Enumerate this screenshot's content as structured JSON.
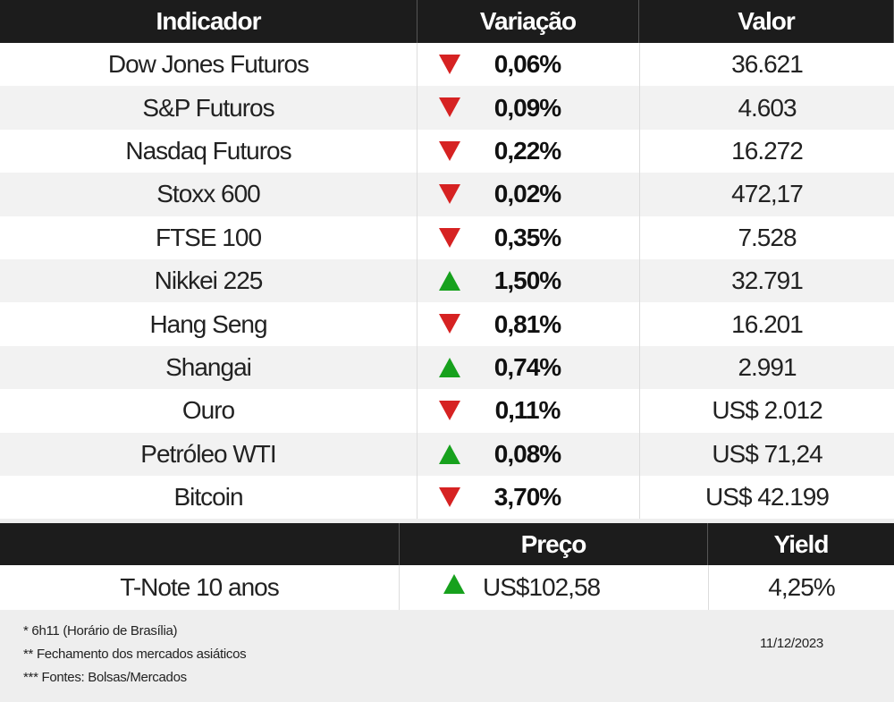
{
  "table": {
    "headers": [
      "Indicador",
      "Variação",
      "Valor"
    ],
    "rows": [
      {
        "name": "Dow Jones Futuros",
        "trend": "down",
        "change": "0,06%",
        "value": "36.621"
      },
      {
        "name": "S&P Futuros",
        "trend": "down",
        "change": "0,09%",
        "value": "4.603"
      },
      {
        "name": "Nasdaq Futuros",
        "trend": "down",
        "change": "0,22%",
        "value": "16.272"
      },
      {
        "name": "Stoxx 600",
        "trend": "down",
        "change": "0,02%",
        "value": "472,17"
      },
      {
        "name": "FTSE 100",
        "trend": "down",
        "change": "0,35%",
        "value": "7.528"
      },
      {
        "name": "Nikkei 225",
        "trend": "up",
        "change": "1,50%",
        "value": "32.791"
      },
      {
        "name": "Hang Seng",
        "trend": "down",
        "change": "0,81%",
        "value": "16.201"
      },
      {
        "name": "Shangai",
        "trend": "up",
        "change": "0,74%",
        "value": "2.991"
      },
      {
        "name": "Ouro",
        "trend": "down",
        "change": "0,11%",
        "value": "US$ 2.012"
      },
      {
        "name": "Petróleo WTI",
        "trend": "up",
        "change": "0,08%",
        "value": "US$ 71,24"
      },
      {
        "name": "Bitcoin",
        "trend": "down",
        "change": "3,70%",
        "value": "US$ 42.199"
      }
    ]
  },
  "bond_table": {
    "headers": [
      "Preço",
      "Yield"
    ],
    "row": {
      "name": "T-Note 10 anos",
      "trend": "up",
      "price": "US$102,58",
      "yield": "4,25%"
    }
  },
  "footer": {
    "notes": [
      "* 6h11 (Horário de Brasília)",
      "** Fechamento dos mercados asiáticos",
      "*** Fontes: Bolsas/Mercados"
    ],
    "date": "11/12/2023"
  }
}
